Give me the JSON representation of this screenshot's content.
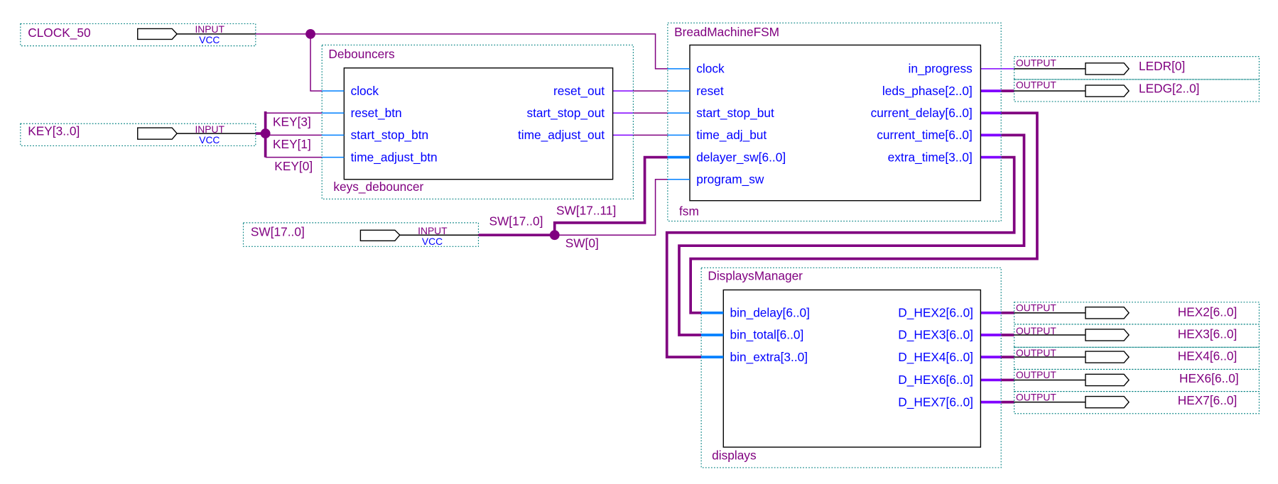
{
  "colors": {
    "wire": "#800080",
    "port_stub": "#0080ff",
    "output_stub": "#8000ff",
    "port_text": "#0000ff",
    "group_border": "#008080"
  },
  "inputs": [
    {
      "name": "CLOCK_50",
      "type": "INPUT",
      "default": "VCC"
    },
    {
      "name": "KEY[3..0]",
      "type": "INPUT",
      "default": "VCC"
    },
    {
      "name": "SW[17..0]",
      "type": "INPUT",
      "default": "VCC"
    }
  ],
  "wire_labels": {
    "key3": "KEY[3]",
    "key1": "KEY[1]",
    "key0": "KEY[0]",
    "sw_all": "SW[17..0]",
    "sw_hi": "SW[17..11]",
    "sw0": "SW[0]"
  },
  "debouncers": {
    "module": "Debouncers",
    "instance": "keys_debouncer",
    "inputs": [
      "clock",
      "reset_btn",
      "start_stop_btn",
      "time_adjust_btn"
    ],
    "outputs": [
      "reset_out",
      "start_stop_out",
      "time_adjust_out"
    ]
  },
  "fsm": {
    "module": "BreadMachineFSM",
    "instance": "fsm",
    "inputs": [
      "clock",
      "reset",
      "start_stop_but",
      "time_adj_but",
      "delayer_sw[6..0]",
      "program_sw"
    ],
    "outputs": [
      "in_progress",
      "leds_phase[2..0]",
      "current_delay[6..0]",
      "current_time[6..0]",
      "extra_time[3..0]"
    ]
  },
  "displays": {
    "module": "DisplaysManager",
    "instance": "displays",
    "inputs": [
      "bin_delay[6..0]",
      "bin_total[6..0]",
      "bin_extra[3..0]"
    ],
    "outputs": [
      "D_HEX2[6..0]",
      "D_HEX3[6..0]",
      "D_HEX4[6..0]",
      "D_HEX6[6..0]",
      "D_HEX7[6..0]"
    ]
  },
  "outputs": [
    {
      "name": "LEDR[0]",
      "type": "OUTPUT"
    },
    {
      "name": "LEDG[2..0]",
      "type": "OUTPUT"
    },
    {
      "name": "HEX2[6..0]",
      "type": "OUTPUT"
    },
    {
      "name": "HEX3[6..0]",
      "type": "OUTPUT"
    },
    {
      "name": "HEX4[6..0]",
      "type": "OUTPUT"
    },
    {
      "name": "HEX6[6..0]",
      "type": "OUTPUT"
    },
    {
      "name": "HEX7[6..0]",
      "type": "OUTPUT"
    }
  ]
}
